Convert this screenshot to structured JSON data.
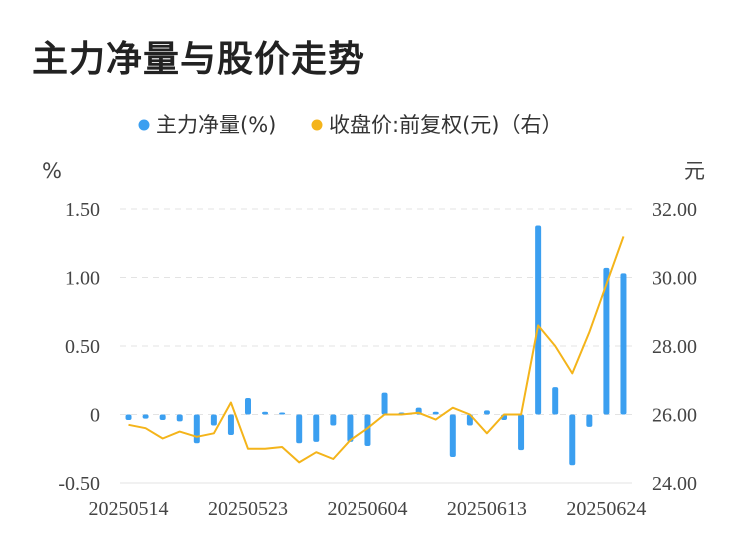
{
  "title": "主力净量与股价走势",
  "legend": {
    "bar_label": "主力净量(%)",
    "line_label": "收盘价:前复权(元)（右）"
  },
  "units": {
    "left": "%",
    "right": "元"
  },
  "colors": {
    "bar": "#3b9ff0",
    "line": "#f4b41a",
    "grid": "#e3e3e3"
  },
  "chart_data": {
    "type": "bar+line",
    "title": "主力净量与股价走势",
    "x_tick_labels": [
      "20250514",
      "20250523",
      "20250604",
      "20250613",
      "20250624"
    ],
    "x_tick_indices": [
      0,
      7,
      14,
      21,
      28
    ],
    "series": [
      {
        "name": "主力净量(%)",
        "type": "bar",
        "axis": "left",
        "values": [
          -0.04,
          -0.03,
          -0.04,
          -0.05,
          -0.21,
          -0.08,
          -0.15,
          0.12,
          0.02,
          0.0,
          -0.21,
          -0.2,
          -0.08,
          -0.2,
          -0.23,
          0.16,
          0.0,
          0.05,
          0.02,
          -0.31,
          -0.08,
          0.03,
          -0.04,
          -0.26,
          1.38,
          0.2,
          -0.37,
          -0.09,
          1.07,
          1.03
        ]
      },
      {
        "name": "收盘价:前复权(元)（右）",
        "type": "line",
        "axis": "right",
        "values": [
          25.7,
          25.6,
          25.3,
          25.5,
          25.35,
          25.45,
          26.35,
          25.0,
          25.0,
          25.05,
          24.6,
          24.9,
          24.7,
          25.25,
          25.6,
          26.0,
          26.0,
          26.05,
          25.85,
          26.2,
          26.0,
          25.45,
          26.0,
          26.0,
          28.6,
          28.0,
          27.2,
          28.4,
          29.8,
          31.2
        ]
      }
    ],
    "y_left": {
      "min": -0.5,
      "max": 1.5,
      "ticks": [
        "-0.50",
        "0",
        "0.50",
        "1.00",
        "1.50"
      ],
      "tick_values": [
        -0.5,
        0,
        0.5,
        1.0,
        1.5
      ]
    },
    "y_right": {
      "min": 24,
      "max": 32,
      "ticks": [
        "24.00",
        "26.00",
        "28.00",
        "30.00",
        "32.00"
      ],
      "tick_values": [
        24,
        26,
        28,
        30,
        32
      ]
    },
    "grid": true,
    "legend_position": "top-center"
  }
}
